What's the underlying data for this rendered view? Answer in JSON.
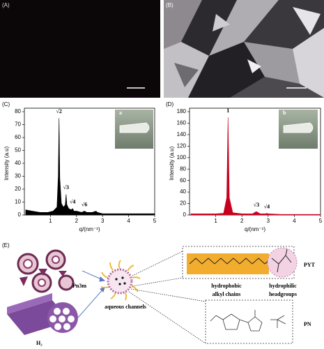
{
  "panels": [
    "(A)",
    "(B)",
    "(C)",
    "(D)",
    "(E)"
  ],
  "chart_data": [
    {
      "type": "area",
      "color": "#000000",
      "x_label": "q/(nm⁻¹)",
      "y_label": "Intensity (a.u)",
      "x": [
        0.05,
        0.3,
        0.6,
        0.9,
        1.1,
        1.25,
        1.3,
        1.33,
        1.36,
        1.42,
        1.5,
        1.57,
        1.6,
        1.63,
        1.7,
        1.8,
        1.85,
        1.9,
        2.0,
        2.2,
        2.3,
        2.4,
        2.6,
        2.75,
        2.8,
        3.0,
        3.5,
        4.0,
        5.0
      ],
      "values": [
        4,
        3,
        2,
        2,
        3,
        6,
        30,
        75,
        28,
        9,
        6,
        8,
        16,
        8,
        5,
        4,
        5,
        3,
        3,
        2,
        3,
        2,
        2,
        3,
        2,
        1,
        1,
        1,
        1
      ],
      "xlim": [
        0,
        5
      ],
      "ylim": [
        0,
        80
      ],
      "xticks": [
        1,
        2,
        3,
        4,
        5
      ],
      "yticks": [
        0,
        10,
        20,
        30,
        40,
        50,
        60,
        70,
        80
      ],
      "annotations": [
        {
          "text": "√2",
          "x": 1.33
        },
        {
          "text": "√3",
          "x": 1.6
        },
        {
          "text": "√4",
          "x": 1.85
        },
        {
          "text": "√6",
          "x": 2.3
        }
      ],
      "inset_label": "a"
    },
    {
      "type": "area",
      "color": "#c8001e",
      "x_label": "q/(nm⁻¹)",
      "y_label": "Intensity (a.u)",
      "x": [
        0.05,
        0.5,
        1.0,
        1.3,
        1.42,
        1.47,
        1.52,
        1.65,
        2.0,
        2.4,
        2.55,
        2.7,
        2.9,
        2.95,
        3.0,
        3.5,
        4.0,
        5.0
      ],
      "values": [
        2,
        2,
        2,
        3,
        30,
        170,
        30,
        4,
        2,
        2,
        6,
        2,
        2,
        3,
        2,
        1,
        1,
        1
      ],
      "xlim": [
        0,
        5
      ],
      "ylim": [
        0,
        180
      ],
      "xticks": [
        1,
        2,
        3,
        4,
        5
      ],
      "yticks": [
        0,
        20,
        40,
        60,
        80,
        100,
        120,
        140,
        160,
        180
      ],
      "annotations": [
        {
          "text": "1",
          "x": 1.47
        },
        {
          "text": "√3",
          "x": 2.55
        },
        {
          "text": "√4",
          "x": 2.95
        }
      ],
      "inset_label": "b"
    }
  ],
  "diagram": {
    "phases": [
      "Pn3m",
      "H₂"
    ],
    "micelle_label": "aqueous channels",
    "hydrophobic": [
      "hydrophobic",
      "alkyl chains"
    ],
    "hydrophilic": [
      "hydrophilic",
      "headgroups"
    ],
    "molecules": [
      "PYT",
      "PN"
    ]
  }
}
